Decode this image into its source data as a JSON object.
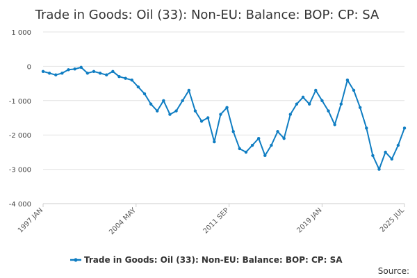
{
  "chart_data": {
    "type": "line",
    "title": "Trade in Goods: Oil (33): Non-EU: Balance: BOP: CP: SA",
    "ylim": [
      -4000,
      1000
    ],
    "y_ticks": [
      1000,
      0,
      -1000,
      -2000,
      -3000,
      -4000
    ],
    "y_tick_labels": [
      "1 000",
      "0",
      "-1 000",
      "-2 000",
      "-3 000",
      "-4 000"
    ],
    "x_tick_labels": [
      "1997 JAN",
      "2004 MAY",
      "2011 SEP",
      "2019 JAN",
      "2025 JUL"
    ],
    "x_start": "1997 JAN",
    "x_end": "2025 JUL",
    "grid": true,
    "legend_position": "bottom",
    "source_label": "Source:",
    "series": [
      {
        "name": "Trade in Goods: Oil (33): Non-EU: Balance: BOP: CP: SA",
        "color": "#0f7dc2",
        "x": [
          "1997 JAN",
          "1997 JUL",
          "1998 JAN",
          "1998 JUL",
          "1999 JAN",
          "1999 JUL",
          "2000 JAN",
          "2000 JUL",
          "2001 JAN",
          "2001 JUL",
          "2002 JAN",
          "2002 JUL",
          "2003 JAN",
          "2003 JUL",
          "2004 JAN",
          "2004 JUL",
          "2005 JAN",
          "2005 JUL",
          "2006 JAN",
          "2006 JUL",
          "2007 JAN",
          "2007 JUL",
          "2008 JAN",
          "2008 JUL",
          "2009 JAN",
          "2009 JUL",
          "2010 JAN",
          "2010 JUL",
          "2011 JAN",
          "2011 JUL",
          "2012 JAN",
          "2012 JUL",
          "2013 JAN",
          "2013 JUL",
          "2014 JAN",
          "2014 JUL",
          "2015 JAN",
          "2015 JUL",
          "2016 JAN",
          "2016 JUL",
          "2017 JAN",
          "2017 JUL",
          "2018 JAN",
          "2018 JUL",
          "2019 JAN",
          "2019 JUL",
          "2020 JAN",
          "2020 JUL",
          "2021 JAN",
          "2021 JUL",
          "2022 JAN",
          "2022 JUL",
          "2023 JAN",
          "2023 JUL",
          "2024 JAN",
          "2024 JUL",
          "2025 JAN",
          "2025 JUL"
        ],
        "values": [
          -150,
          -200,
          -250,
          -200,
          -100,
          -80,
          -30,
          -200,
          -150,
          -200,
          -250,
          -150,
          -300,
          -350,
          -400,
          -600,
          -800,
          -1100,
          -1300,
          -1000,
          -1400,
          -1300,
          -1000,
          -700,
          -1300,
          -1600,
          -1500,
          -2200,
          -1400,
          -1200,
          -1900,
          -2400,
          -2500,
          -2300,
          -2100,
          -2600,
          -2300,
          -1900,
          -2100,
          -1400,
          -1100,
          -900,
          -1100,
          -700,
          -1000,
          -1300,
          -1700,
          -1100,
          -400,
          -700,
          -1200,
          -1800,
          -2600,
          -3000,
          -2500,
          -2700,
          -2300,
          -1800
        ]
      }
    ]
  }
}
